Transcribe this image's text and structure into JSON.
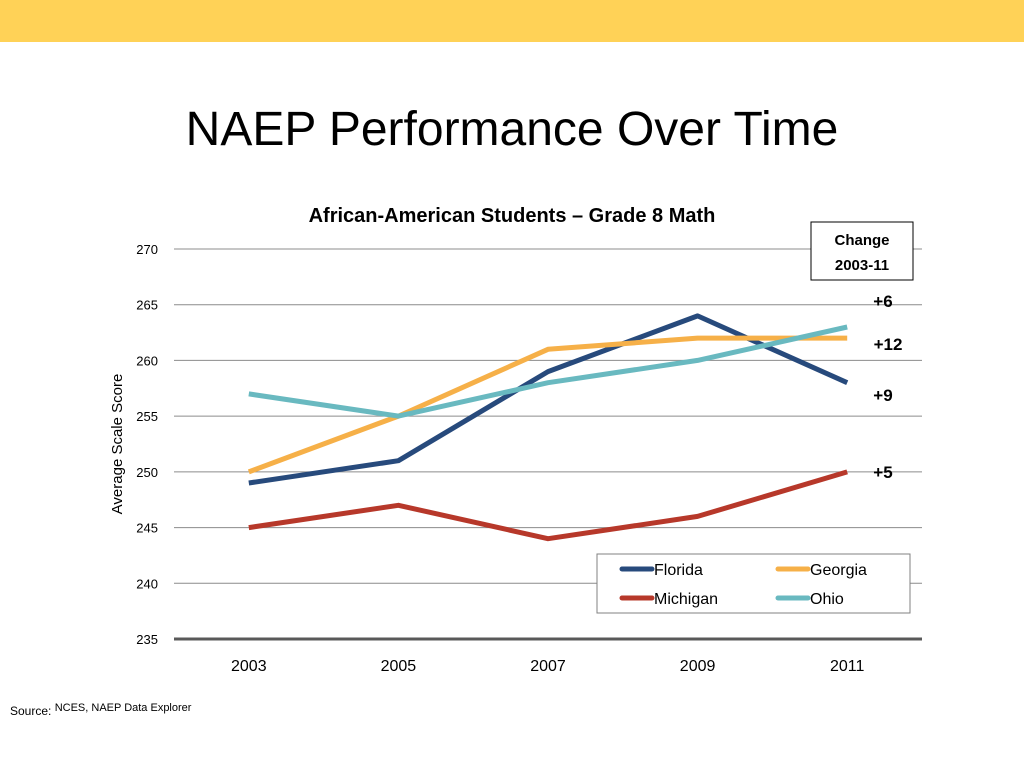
{
  "slide": {
    "title": "NAEP Performance Over Time",
    "source_label": "Source:",
    "source_text": "NCES, NAEP Data Explorer"
  },
  "colors": {
    "band": "#ffd257",
    "Florida": "#274a7c",
    "Georgia": "#f6b048",
    "Michigan": "#b7382a",
    "Ohio": "#69b9c0"
  },
  "chart_data": {
    "type": "line",
    "title": "African-American Students – Grade 8 Math",
    "ylabel": "Average Scale Score",
    "xlabel": "",
    "x": [
      "2003",
      "2005",
      "2007",
      "2009",
      "2011"
    ],
    "ylim": [
      235,
      270
    ],
    "yticks": [
      235,
      240,
      245,
      250,
      255,
      260,
      265,
      270
    ],
    "grid": true,
    "legend_position": "bottom-right",
    "series": [
      {
        "name": "Florida",
        "values": [
          249,
          251,
          259,
          264,
          258
        ]
      },
      {
        "name": "Georgia",
        "values": [
          250,
          255,
          261,
          262,
          262
        ]
      },
      {
        "name": "Michigan",
        "values": [
          245,
          247,
          244,
          246,
          250
        ]
      },
      {
        "name": "Ohio",
        "values": [
          257,
          255,
          258,
          260,
          263
        ]
      }
    ],
    "change_box": {
      "line1": "Change",
      "line2": "2003-11"
    },
    "change_labels": [
      "+6",
      "+12",
      "+9",
      "+5"
    ]
  }
}
